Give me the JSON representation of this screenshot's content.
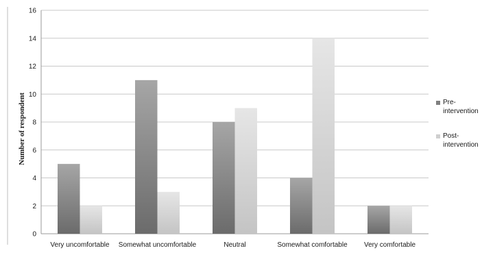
{
  "chart_data": {
    "type": "bar",
    "title": "",
    "xlabel": "",
    "ylabel": "Number of respondent",
    "ylim": [
      0,
      16
    ],
    "yticks": [
      0,
      2,
      4,
      6,
      8,
      10,
      12,
      14,
      16
    ],
    "grid": true,
    "legend_position": "right",
    "categories": [
      "Very uncomfortable",
      "Somewhat uncomfortable",
      "Neutral",
      "Somewhat comfortable",
      "Very comfortable"
    ],
    "series": [
      {
        "name": "Pre-intervention",
        "legend_lines": [
          "Pre-",
          "intervention"
        ],
        "values": [
          5,
          11,
          8,
          4,
          2
        ],
        "color": "#7f7f7f"
      },
      {
        "name": "Post-intervention",
        "legend_lines": [
          "Post-",
          "intervention"
        ],
        "values": [
          2,
          3,
          9,
          14,
          2
        ],
        "color": "#cfcfcf"
      }
    ]
  }
}
